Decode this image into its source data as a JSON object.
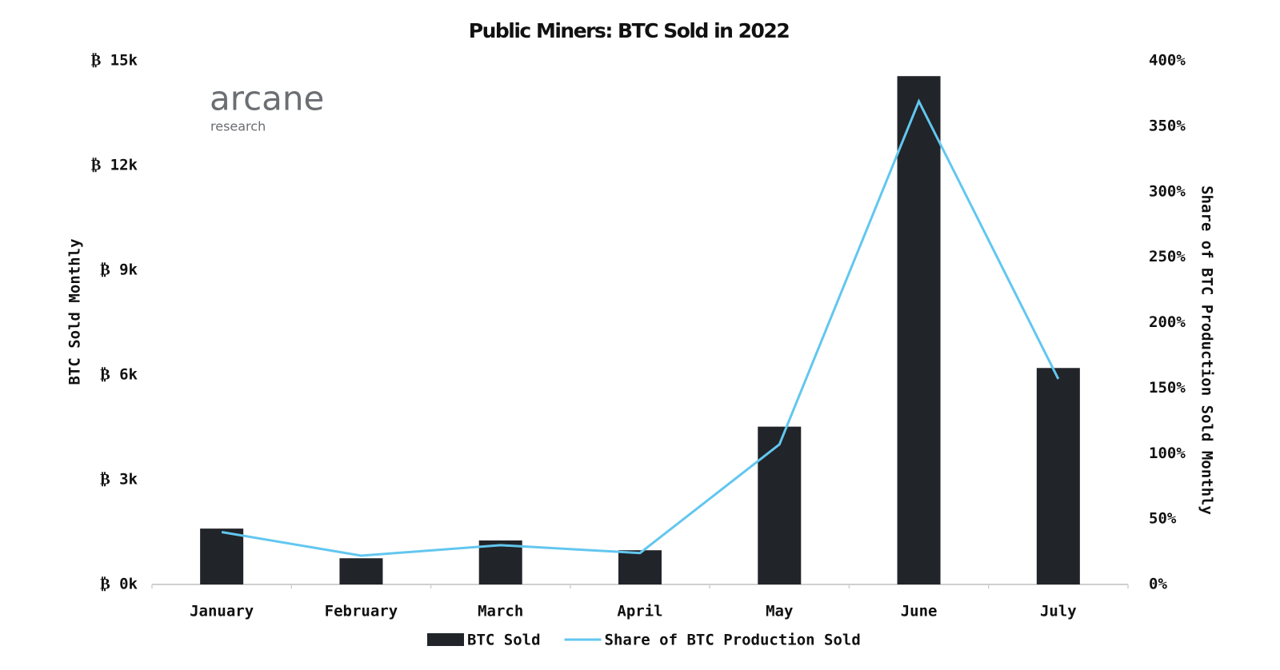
{
  "chart_data": {
    "type": "bar_line",
    "title": "Public Miners: BTC Sold in 2022",
    "watermark": [
      "arcane",
      "research"
    ],
    "y_label": "BTC Sold Monthly",
    "y2_label": "Share of BTC Production Sold Monthly",
    "categories": [
      "January",
      "February",
      "March",
      "April",
      "May",
      "June",
      "July"
    ],
    "series": [
      {
        "name": "BTC Sold",
        "type": "bar",
        "color": "#212429",
        "values": [
          1600,
          750,
          1260,
          980,
          4520,
          14560,
          6200
        ]
      },
      {
        "name": "Share of BTC Production Sold",
        "type": "line",
        "color": "#62c7ef",
        "axis": "y2",
        "values": [
          40,
          22,
          30,
          24,
          107,
          369,
          157
        ]
      }
    ],
    "ylim": [
      0,
      15000
    ],
    "yticks": [
      {
        "value": 0,
        "label": "₿ 0k"
      },
      {
        "value": 3000,
        "label": "₿ 3k"
      },
      {
        "value": 6000,
        "label": "₿ 6k"
      },
      {
        "value": 9000,
        "label": "₿ 9k"
      },
      {
        "value": 12000,
        "label": "₿ 12k"
      },
      {
        "value": 15000,
        "label": "₿ 15k"
      }
    ],
    "y2lim": [
      0,
      400
    ],
    "y2ticks": [
      {
        "value": 0,
        "label": "0%"
      },
      {
        "value": 50,
        "label": "50%"
      },
      {
        "value": 100,
        "label": "100%"
      },
      {
        "value": 150,
        "label": "150%"
      },
      {
        "value": 200,
        "label": "200%"
      },
      {
        "value": 250,
        "label": "250%"
      },
      {
        "value": 300,
        "label": "300%"
      },
      {
        "value": 350,
        "label": "350%"
      },
      {
        "value": 400,
        "label": "400%"
      }
    ],
    "grid": false,
    "legend": "bottom"
  }
}
